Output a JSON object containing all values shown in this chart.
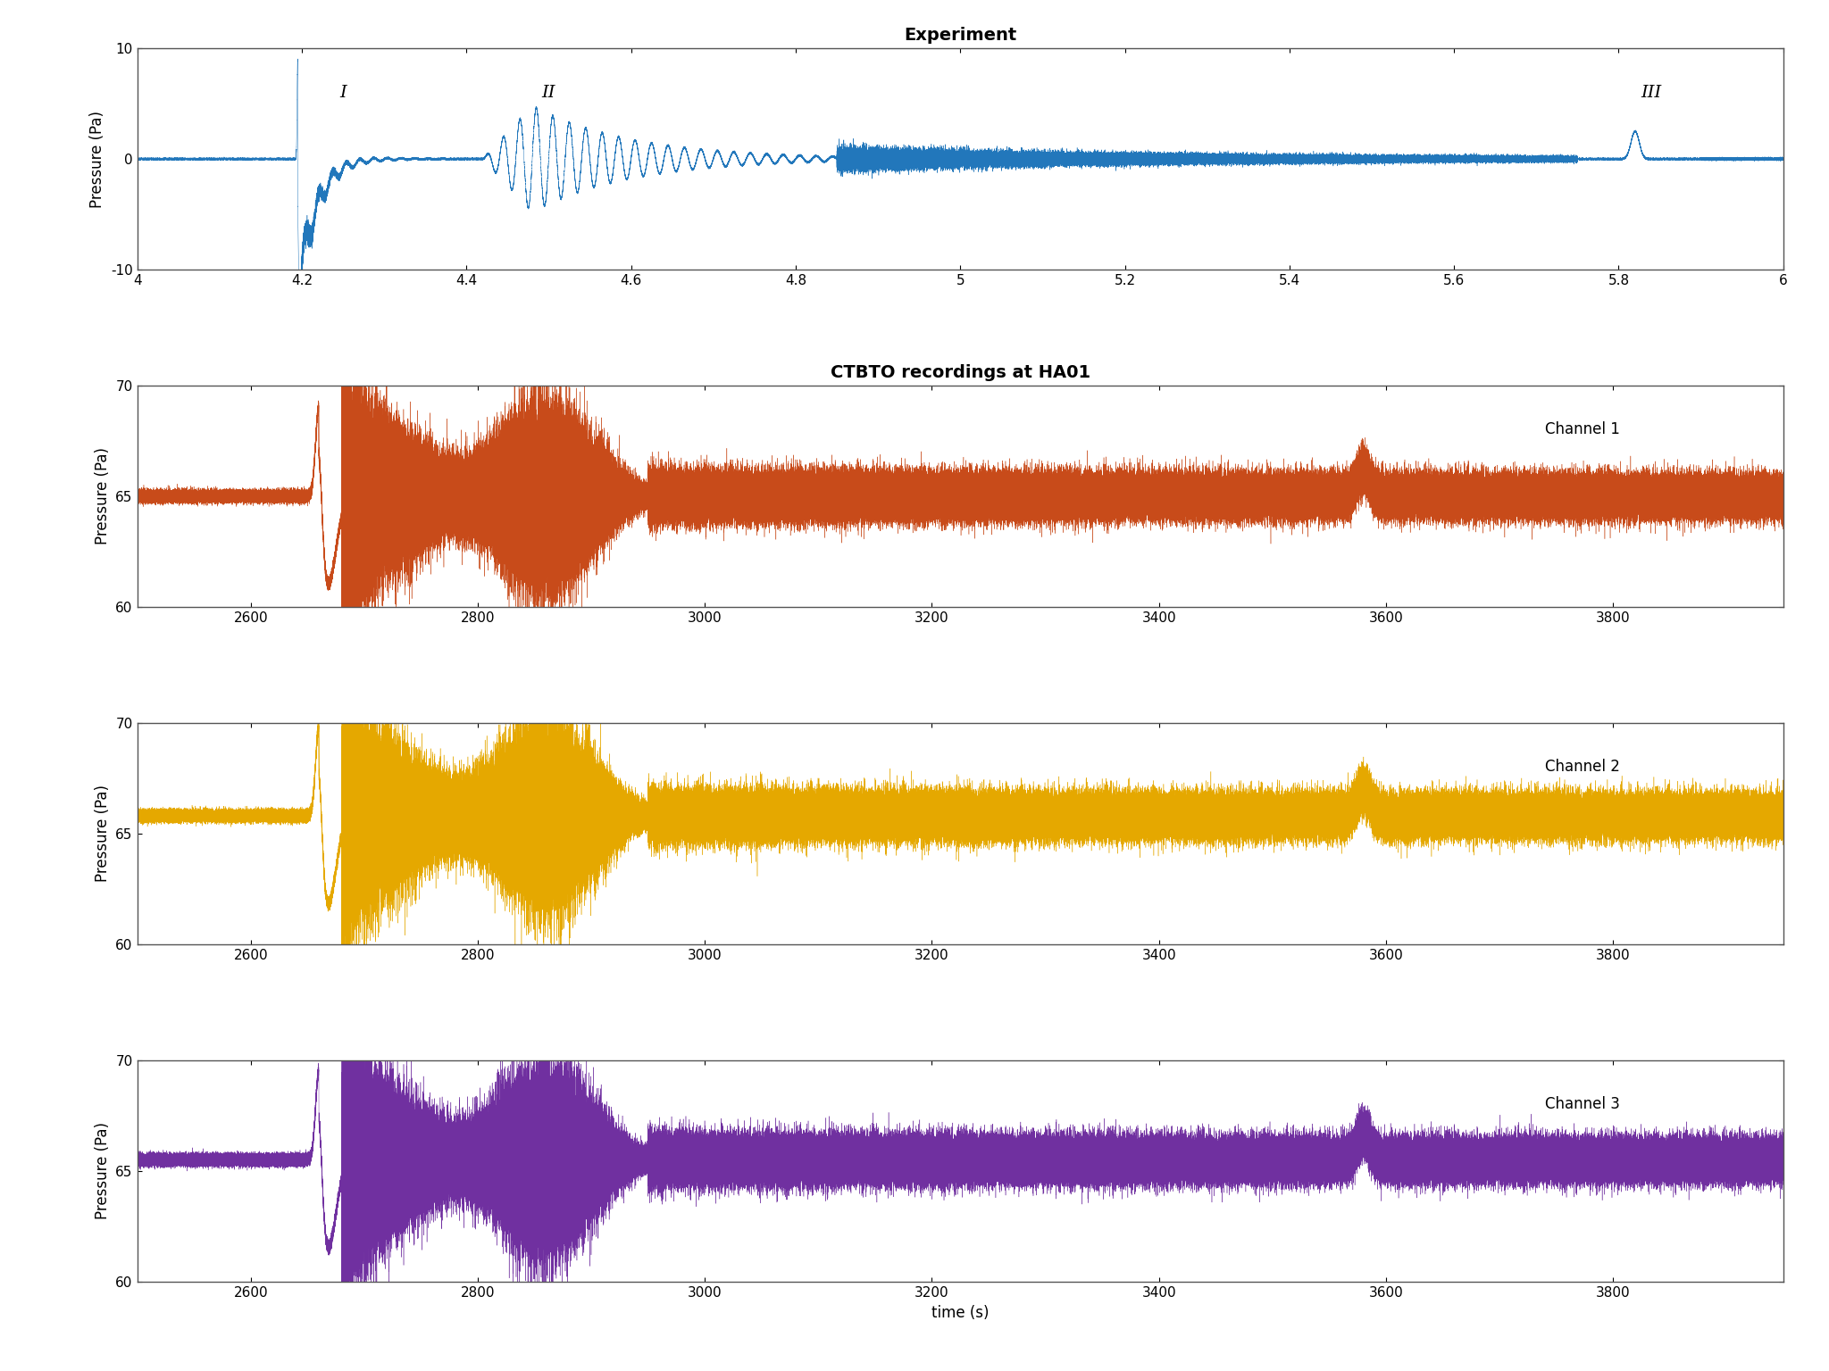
{
  "title_top": "Experiment",
  "title_bottom": "CTBTO recordings at HA01",
  "ylabel": "Pressure (Pa)",
  "xlabel": "time (s)",
  "exp_xlim": [
    4.0,
    6.0
  ],
  "exp_ylim": [
    -10,
    10
  ],
  "exp_yticks": [
    -10,
    0,
    10
  ],
  "exp_xticks": [
    4.0,
    4.2,
    4.4,
    4.6,
    4.8,
    5.0,
    5.2,
    5.4,
    5.6,
    5.8,
    6.0
  ],
  "exp_color": "#2277BB",
  "ha_xlim": [
    2500,
    3950
  ],
  "ha_ylim": [
    60,
    70
  ],
  "ha_yticks": [
    60,
    65,
    70
  ],
  "ha_xticks": [
    2600,
    2800,
    3000,
    3200,
    3400,
    3600,
    3800
  ],
  "ch1_color": "#C84B1A",
  "ch2_color": "#E5A800",
  "ch3_color": "#7030A0",
  "ch1_label": "Channel 1",
  "ch2_label": "Channel 2",
  "ch3_label": "Channel 3",
  "ch1_baseline": 65.0,
  "ch2_baseline": 65.8,
  "ch3_baseline": 65.5,
  "background_color": "#FFFFFF",
  "fig_width": 20.48,
  "fig_height": 15.36,
  "dpi": 100
}
